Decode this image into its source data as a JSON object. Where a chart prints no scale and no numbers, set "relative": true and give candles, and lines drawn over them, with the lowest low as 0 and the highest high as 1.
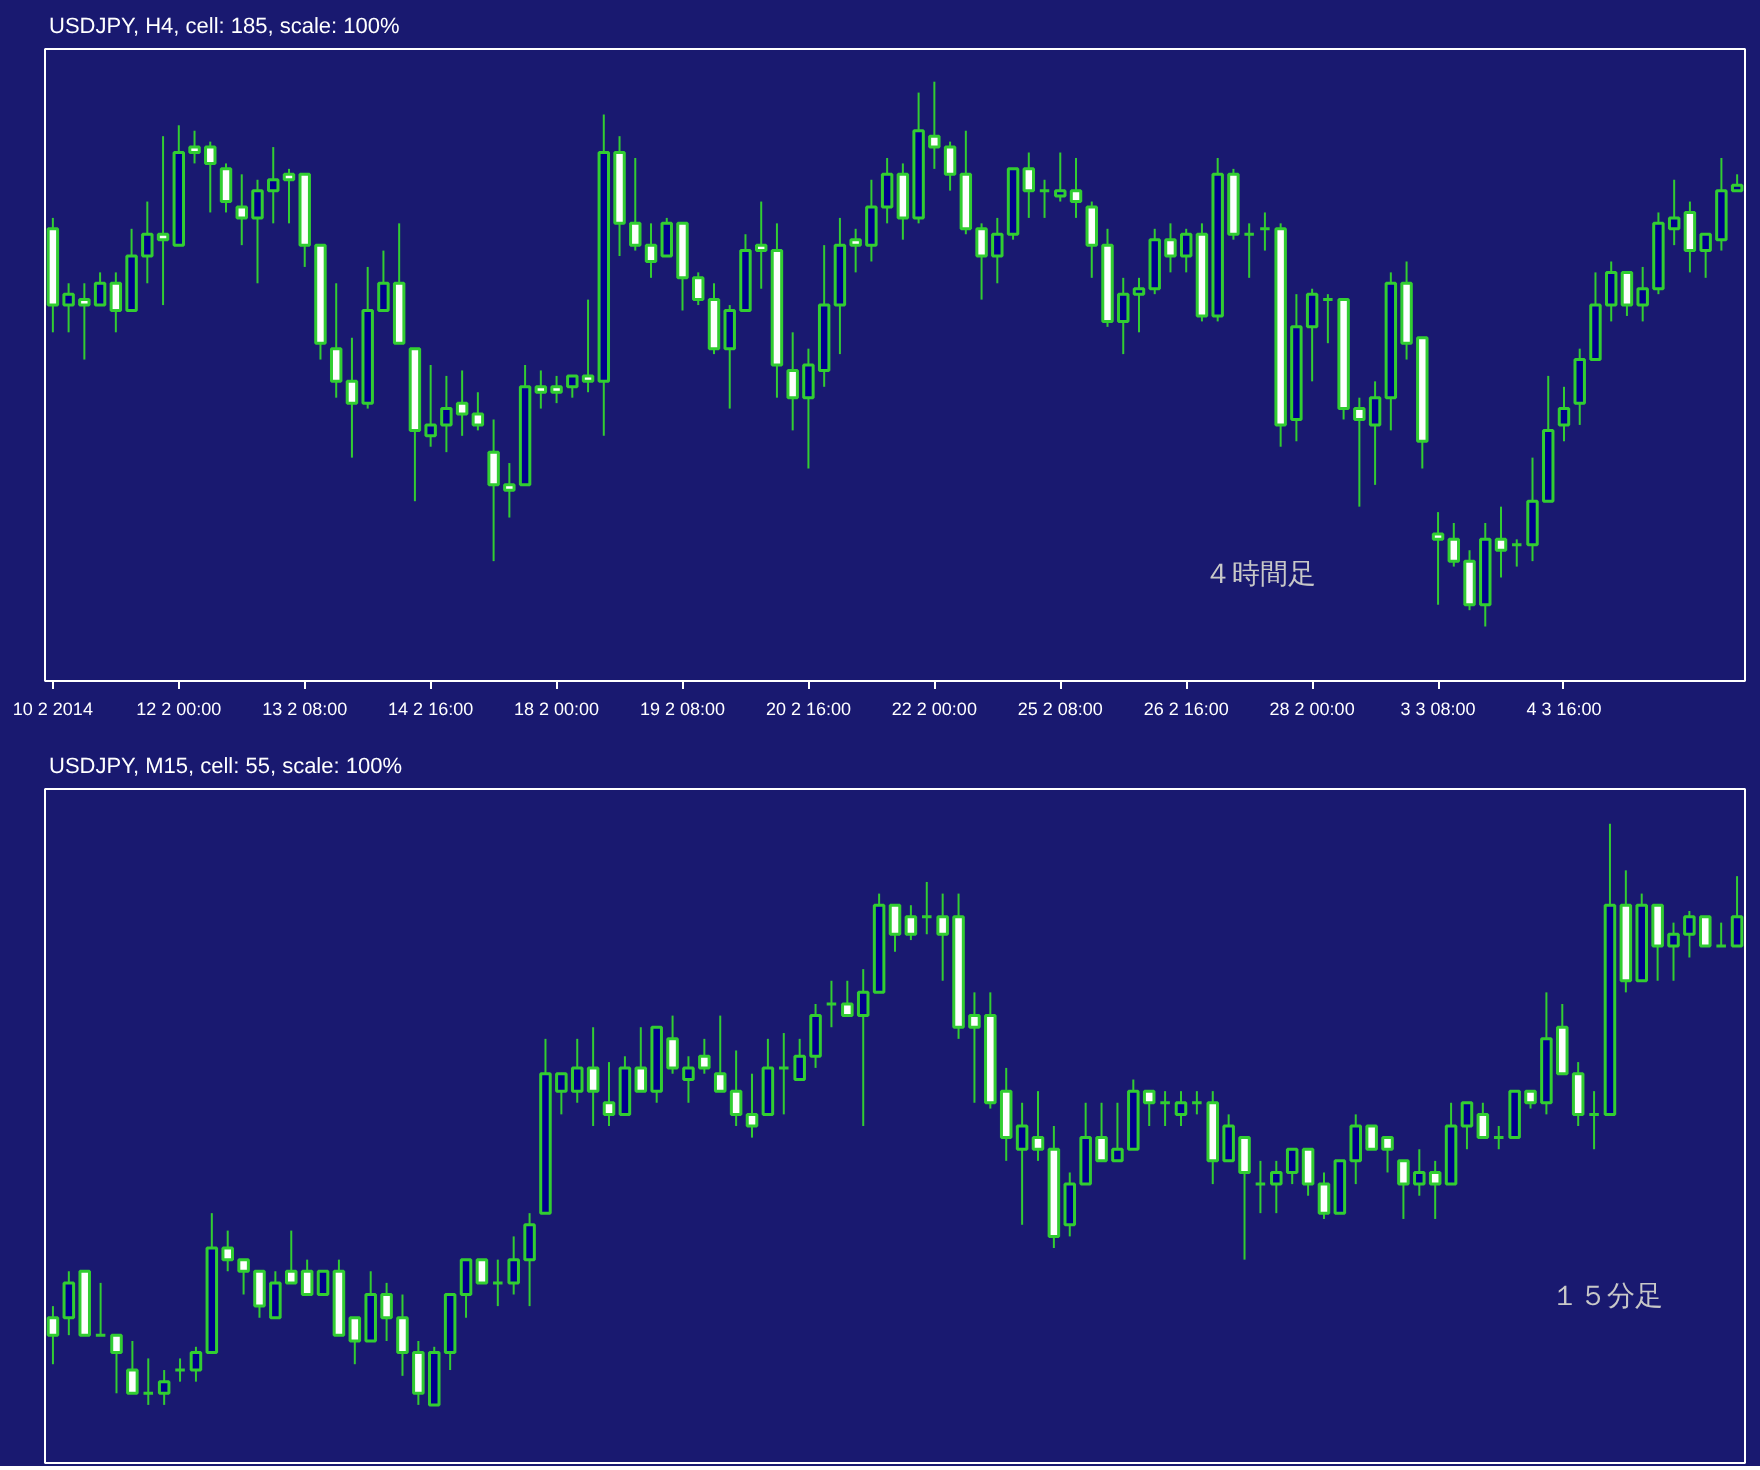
{
  "chart_data": [
    {
      "type": "candlestick",
      "title": "USDJPY, H4, cell: 185, scale: 100%",
      "relative": true,
      "tick_labels": "x",
      "grid": false,
      "color": "#32cd32",
      "annotations": [
        "４時間足"
      ],
      "categories": [
        "10 2 2014",
        null,
        null,
        null,
        null,
        null,
        null,
        null,
        "12 2 00:00",
        null,
        null,
        null,
        null,
        null,
        null,
        null,
        "13 2 08:00",
        null,
        null,
        null,
        null,
        null,
        null,
        null,
        "14 2 16:00",
        null,
        null,
        null,
        null,
        null,
        null,
        null,
        "18 2 00:00",
        null,
        null,
        null,
        null,
        null,
        null,
        null,
        "19 2 08:00",
        null,
        null,
        null,
        null,
        null,
        null,
        null,
        "20 2 16:00",
        null,
        null,
        null,
        null,
        null,
        null,
        null,
        "22 2 00:00",
        null,
        null,
        null,
        null,
        null,
        null,
        null,
        "25 2 08:00",
        null,
        null,
        null,
        null,
        null,
        null,
        null,
        "26 2 16:00",
        null,
        null,
        null,
        null,
        null,
        null,
        null,
        "28 2 00:00",
        null,
        null,
        null,
        null,
        null,
        null,
        null,
        "3 3 08:00",
        null,
        null,
        null,
        null,
        null,
        null,
        null,
        "4 3 16:00",
        null,
        null,
        null,
        null,
        null,
        null,
        null,
        null,
        null,
        null,
        null
      ],
      "ohlc": [
        [
          0.73,
          0.75,
          0.54,
          0.59
        ],
        [
          0.59,
          0.63,
          0.54,
          0.61
        ],
        [
          0.6,
          0.63,
          0.49,
          0.59
        ],
        [
          0.59,
          0.65,
          0.59,
          0.63
        ],
        [
          0.63,
          0.65,
          0.54,
          0.58
        ],
        [
          0.58,
          0.73,
          0.58,
          0.68
        ],
        [
          0.68,
          0.78,
          0.63,
          0.72
        ],
        [
          0.72,
          0.9,
          0.59,
          0.71
        ],
        [
          0.7,
          0.92,
          0.7,
          0.87
        ],
        [
          0.88,
          0.91,
          0.85,
          0.87
        ],
        [
          0.88,
          0.89,
          0.76,
          0.85
        ],
        [
          0.84,
          0.85,
          0.76,
          0.78
        ],
        [
          0.77,
          0.83,
          0.7,
          0.75
        ],
        [
          0.75,
          0.82,
          0.63,
          0.8
        ],
        [
          0.8,
          0.88,
          0.74,
          0.82
        ],
        [
          0.83,
          0.84,
          0.74,
          0.82
        ],
        [
          0.83,
          0.83,
          0.66,
          0.7
        ],
        [
          0.7,
          0.7,
          0.49,
          0.52
        ],
        [
          0.51,
          0.63,
          0.42,
          0.45
        ],
        [
          0.45,
          0.53,
          0.31,
          0.41
        ],
        [
          0.41,
          0.66,
          0.4,
          0.58
        ],
        [
          0.58,
          0.69,
          0.58,
          0.63
        ],
        [
          0.63,
          0.74,
          0.52,
          0.52
        ],
        [
          0.51,
          0.51,
          0.23,
          0.36
        ],
        [
          0.35,
          0.48,
          0.33,
          0.37
        ],
        [
          0.37,
          0.46,
          0.32,
          0.4
        ],
        [
          0.41,
          0.47,
          0.35,
          0.39
        ],
        [
          0.39,
          0.43,
          0.36,
          0.37
        ],
        [
          0.32,
          0.38,
          0.12,
          0.26
        ],
        [
          0.26,
          0.3,
          0.2,
          0.25
        ],
        [
          0.26,
          0.48,
          0.26,
          0.44
        ],
        [
          0.44,
          0.47,
          0.4,
          0.43
        ],
        [
          0.44,
          0.46,
          0.41,
          0.43
        ],
        [
          0.44,
          0.46,
          0.42,
          0.46
        ],
        [
          0.46,
          0.6,
          0.43,
          0.45
        ],
        [
          0.45,
          0.94,
          0.35,
          0.87
        ],
        [
          0.87,
          0.9,
          0.68,
          0.74
        ],
        [
          0.74,
          0.86,
          0.69,
          0.7
        ],
        [
          0.7,
          0.74,
          0.64,
          0.67
        ],
        [
          0.68,
          0.75,
          0.68,
          0.74
        ],
        [
          0.74,
          0.74,
          0.58,
          0.64
        ],
        [
          0.64,
          0.65,
          0.59,
          0.6
        ],
        [
          0.6,
          0.63,
          0.5,
          0.51
        ],
        [
          0.51,
          0.59,
          0.4,
          0.58
        ],
        [
          0.58,
          0.72,
          0.58,
          0.69
        ],
        [
          0.7,
          0.78,
          0.62,
          0.69
        ],
        [
          0.69,
          0.74,
          0.42,
          0.48
        ],
        [
          0.47,
          0.54,
          0.36,
          0.42
        ],
        [
          0.42,
          0.51,
          0.29,
          0.48
        ],
        [
          0.47,
          0.7,
          0.44,
          0.59
        ],
        [
          0.59,
          0.75,
          0.5,
          0.7
        ],
        [
          0.71,
          0.73,
          0.65,
          0.7
        ],
        [
          0.7,
          0.82,
          0.67,
          0.77
        ],
        [
          0.77,
          0.86,
          0.74,
          0.83
        ],
        [
          0.83,
          0.85,
          0.71,
          0.75
        ],
        [
          0.75,
          0.98,
          0.74,
          0.91
        ],
        [
          0.9,
          1.0,
          0.84,
          0.88
        ],
        [
          0.88,
          0.89,
          0.8,
          0.83
        ],
        [
          0.83,
          0.91,
          0.72,
          0.73
        ],
        [
          0.73,
          0.74,
          0.6,
          0.68
        ],
        [
          0.68,
          0.75,
          0.63,
          0.72
        ],
        [
          0.72,
          0.84,
          0.71,
          0.84
        ],
        [
          0.84,
          0.87,
          0.75,
          0.8
        ],
        [
          0.8,
          0.82,
          0.75,
          0.8
        ],
        [
          0.79,
          0.87,
          0.78,
          0.8
        ],
        [
          0.8,
          0.86,
          0.75,
          0.78
        ],
        [
          0.77,
          0.78,
          0.64,
          0.7
        ],
        [
          0.7,
          0.73,
          0.55,
          0.56
        ],
        [
          0.56,
          0.64,
          0.5,
          0.61
        ],
        [
          0.61,
          0.64,
          0.54,
          0.62
        ],
        [
          0.62,
          0.73,
          0.61,
          0.71
        ],
        [
          0.71,
          0.74,
          0.65,
          0.68
        ],
        [
          0.68,
          0.73,
          0.65,
          0.72
        ],
        [
          0.72,
          0.74,
          0.56,
          0.57
        ],
        [
          0.57,
          0.86,
          0.56,
          0.83
        ],
        [
          0.83,
          0.84,
          0.71,
          0.72
        ],
        [
          0.72,
          0.74,
          0.64,
          0.72
        ],
        [
          0.73,
          0.76,
          0.69,
          0.73
        ],
        [
          0.73,
          0.74,
          0.33,
          0.37
        ],
        [
          0.38,
          0.61,
          0.34,
          0.55
        ],
        [
          0.55,
          0.62,
          0.45,
          0.61
        ],
        [
          0.6,
          0.61,
          0.52,
          0.6
        ],
        [
          0.6,
          0.6,
          0.38,
          0.4
        ],
        [
          0.4,
          0.42,
          0.22,
          0.38
        ],
        [
          0.37,
          0.45,
          0.26,
          0.42
        ],
        [
          0.42,
          0.65,
          0.36,
          0.63
        ],
        [
          0.63,
          0.67,
          0.49,
          0.52
        ],
        [
          0.53,
          0.53,
          0.29,
          0.34
        ],
        [
          0.17,
          0.21,
          0.04,
          0.16
        ],
        [
          0.16,
          0.19,
          0.11,
          0.12
        ],
        [
          0.12,
          0.14,
          0.03,
          0.04
        ],
        [
          0.04,
          0.19,
          0,
          0.16
        ],
        [
          0.16,
          0.22,
          0.09,
          0.14
        ],
        [
          0.15,
          0.16,
          0.11,
          0.15
        ],
        [
          0.15,
          0.31,
          0.12,
          0.23
        ],
        [
          0.23,
          0.46,
          0.23,
          0.36
        ],
        [
          0.37,
          0.44,
          0.34,
          0.4
        ],
        [
          0.41,
          0.51,
          0.37,
          0.49
        ],
        [
          0.49,
          0.65,
          0.49,
          0.59
        ],
        [
          0.59,
          0.67,
          0.56,
          0.65
        ],
        [
          0.65,
          0.65,
          0.57,
          0.59
        ],
        [
          0.59,
          0.66,
          0.56,
          0.62
        ],
        [
          0.62,
          0.76,
          0.61,
          0.74
        ],
        [
          0.73,
          0.82,
          0.7,
          0.75
        ],
        [
          0.76,
          0.78,
          0.65,
          0.69
        ],
        [
          0.69,
          0.72,
          0.64,
          0.72
        ],
        [
          0.71,
          0.86,
          0.69,
          0.8
        ],
        [
          0.8,
          0.83,
          0.8,
          0.81
        ]
      ]
    },
    {
      "type": "candlestick",
      "title": "USDJPY, M15, cell: 55, scale: 100%",
      "relative": true,
      "tick_labels": false,
      "grid": false,
      "color": "#32cd32",
      "annotations": [
        "１５分足"
      ],
      "categories": [
        null,
        null,
        null,
        null,
        null,
        null,
        null,
        null,
        null,
        null,
        null,
        null,
        null,
        null,
        null,
        null,
        null,
        null,
        null,
        null,
        null,
        null,
        null,
        null,
        null,
        null,
        null,
        null,
        null,
        null,
        null,
        null,
        null,
        null,
        null,
        null,
        null,
        null,
        null,
        null,
        null,
        null,
        null,
        null,
        null,
        null,
        null,
        null,
        null,
        null,
        null,
        null,
        null,
        null,
        null,
        null,
        null,
        null,
        null,
        null,
        null,
        null,
        null,
        null,
        null,
        null,
        null,
        null,
        null,
        null,
        null,
        null,
        null,
        null,
        null,
        null,
        null,
        null,
        null,
        null,
        null,
        null,
        null,
        null,
        null,
        null,
        null,
        null,
        null,
        null,
        null,
        null,
        null,
        null,
        null,
        null,
        null,
        null,
        null,
        null,
        null,
        null,
        null,
        null,
        null,
        null,
        null
      ],
      "ohlc": [
        [
          0.15,
          0.17,
          0.07,
          0.12
        ],
        [
          0.15,
          0.23,
          0.12,
          0.21
        ],
        [
          0.23,
          0.23,
          0.12,
          0.12
        ],
        [
          0.12,
          0.21,
          0.12,
          0.12
        ],
        [
          0.12,
          0.12,
          0.02,
          0.09
        ],
        [
          0.06,
          0.11,
          0.02,
          0.02
        ],
        [
          0.02,
          0.08,
          0,
          0.02
        ],
        [
          0.02,
          0.06,
          0,
          0.04
        ],
        [
          0.06,
          0.08,
          0.04,
          0.06
        ],
        [
          0.06,
          0.1,
          0.04,
          0.09
        ],
        [
          0.09,
          0.33,
          0.09,
          0.27
        ],
        [
          0.27,
          0.3,
          0.23,
          0.25
        ],
        [
          0.25,
          0.25,
          0.19,
          0.23
        ],
        [
          0.23,
          0.23,
          0.15,
          0.17
        ],
        [
          0.15,
          0.23,
          0.15,
          0.21
        ],
        [
          0.23,
          0.3,
          0.21,
          0.21
        ],
        [
          0.23,
          0.25,
          0.19,
          0.19
        ],
        [
          0.19,
          0.23,
          0.19,
          0.23
        ],
        [
          0.23,
          0.25,
          0.12,
          0.12
        ],
        [
          0.15,
          0.15,
          0.07,
          0.11
        ],
        [
          0.11,
          0.23,
          0.11,
          0.19
        ],
        [
          0.19,
          0.21,
          0.11,
          0.15
        ],
        [
          0.15,
          0.19,
          0.05,
          0.09
        ],
        [
          0.09,
          0.11,
          0,
          0.02
        ],
        [
          0,
          0.1,
          0,
          0.09
        ],
        [
          0.09,
          0.19,
          0.06,
          0.19
        ],
        [
          0.19,
          0.25,
          0.15,
          0.25
        ],
        [
          0.25,
          0.25,
          0.21,
          0.21
        ],
        [
          0.21,
          0.25,
          0.17,
          0.21
        ],
        [
          0.21,
          0.29,
          0.19,
          0.25
        ],
        [
          0.25,
          0.33,
          0.17,
          0.31
        ],
        [
          0.33,
          0.63,
          0.33,
          0.57
        ],
        [
          0.54,
          0.57,
          0.5,
          0.57
        ],
        [
          0.54,
          0.63,
          0.52,
          0.58
        ],
        [
          0.58,
          0.65,
          0.48,
          0.54
        ],
        [
          0.52,
          0.59,
          0.48,
          0.5
        ],
        [
          0.5,
          0.6,
          0.5,
          0.58
        ],
        [
          0.58,
          0.65,
          0.54,
          0.54
        ],
        [
          0.54,
          0.65,
          0.52,
          0.65
        ],
        [
          0.63,
          0.67,
          0.57,
          0.58
        ],
        [
          0.56,
          0.6,
          0.52,
          0.58
        ],
        [
          0.6,
          0.63,
          0.57,
          0.58
        ],
        [
          0.57,
          0.67,
          0.54,
          0.54
        ],
        [
          0.54,
          0.61,
          0.48,
          0.5
        ],
        [
          0.5,
          0.57,
          0.46,
          0.48
        ],
        [
          0.5,
          0.63,
          0.5,
          0.58
        ],
        [
          0.58,
          0.64,
          0.5,
          0.58
        ],
        [
          0.56,
          0.63,
          0.56,
          0.6
        ],
        [
          0.6,
          0.69,
          0.58,
          0.67
        ],
        [
          0.69,
          0.73,
          0.65,
          0.69
        ],
        [
          0.69,
          0.73,
          0.67,
          0.67
        ],
        [
          0.67,
          0.75,
          0.48,
          0.71
        ],
        [
          0.71,
          0.88,
          0.71,
          0.86
        ],
        [
          0.86,
          0.86,
          0.78,
          0.81
        ],
        [
          0.84,
          0.86,
          0.8,
          0.81
        ],
        [
          0.84,
          0.9,
          0.81,
          0.84
        ],
        [
          0.84,
          0.88,
          0.73,
          0.81
        ],
        [
          0.84,
          0.88,
          0.63,
          0.65
        ],
        [
          0.67,
          0.71,
          0.52,
          0.65
        ],
        [
          0.67,
          0.71,
          0.51,
          0.52
        ],
        [
          0.54,
          0.58,
          0.42,
          0.46
        ],
        [
          0.44,
          0.52,
          0.31,
          0.48
        ],
        [
          0.46,
          0.54,
          0.42,
          0.44
        ],
        [
          0.44,
          0.48,
          0.27,
          0.29
        ],
        [
          0.31,
          0.4,
          0.29,
          0.38
        ],
        [
          0.38,
          0.52,
          0.38,
          0.46
        ],
        [
          0.46,
          0.52,
          0.42,
          0.42
        ],
        [
          0.42,
          0.52,
          0.42,
          0.44
        ],
        [
          0.44,
          0.56,
          0.44,
          0.54
        ],
        [
          0.54,
          0.54,
          0.48,
          0.52
        ],
        [
          0.52,
          0.54,
          0.48,
          0.52
        ],
        [
          0.5,
          0.54,
          0.48,
          0.52
        ],
        [
          0.52,
          0.54,
          0.5,
          0.52
        ],
        [
          0.52,
          0.54,
          0.38,
          0.42
        ],
        [
          0.42,
          0.5,
          0.42,
          0.48
        ],
        [
          0.46,
          0.46,
          0.25,
          0.4
        ],
        [
          0.38,
          0.42,
          0.33,
          0.38
        ],
        [
          0.38,
          0.42,
          0.33,
          0.4
        ],
        [
          0.4,
          0.44,
          0.38,
          0.44
        ],
        [
          0.44,
          0.44,
          0.36,
          0.38
        ],
        [
          0.38,
          0.4,
          0.32,
          0.33
        ],
        [
          0.33,
          0.42,
          0.33,
          0.42
        ],
        [
          0.42,
          0.5,
          0.38,
          0.48
        ],
        [
          0.48,
          0.48,
          0.44,
          0.44
        ],
        [
          0.46,
          0.46,
          0.4,
          0.44
        ],
        [
          0.42,
          0.42,
          0.32,
          0.38
        ],
        [
          0.38,
          0.44,
          0.36,
          0.4
        ],
        [
          0.4,
          0.42,
          0.32,
          0.38
        ],
        [
          0.38,
          0.52,
          0.38,
          0.48
        ],
        [
          0.48,
          0.52,
          0.44,
          0.52
        ],
        [
          0.5,
          0.52,
          0.46,
          0.46
        ],
        [
          0.46,
          0.48,
          0.44,
          0.46
        ],
        [
          0.46,
          0.54,
          0.46,
          0.54
        ],
        [
          0.54,
          0.54,
          0.51,
          0.52
        ],
        [
          0.52,
          0.71,
          0.5,
          0.63
        ],
        [
          0.65,
          0.69,
          0.57,
          0.57
        ],
        [
          0.57,
          0.59,
          0.48,
          0.5
        ],
        [
          0.5,
          0.54,
          0.44,
          0.5
        ],
        [
          0.5,
          1,
          0.5,
          0.86
        ],
        [
          0.86,
          0.92,
          0.71,
          0.73
        ],
        [
          0.73,
          0.88,
          0.73,
          0.86
        ],
        [
          0.86,
          0.86,
          0.73,
          0.79
        ],
        [
          0.79,
          0.83,
          0.73,
          0.81
        ],
        [
          0.81,
          0.85,
          0.77,
          0.84
        ],
        [
          0.84,
          0.84,
          0.79,
          0.79
        ],
        [
          0.79,
          0.83,
          0.79,
          0.79
        ],
        [
          0.79,
          0.91,
          0.79,
          0.84
        ]
      ]
    }
  ]
}
